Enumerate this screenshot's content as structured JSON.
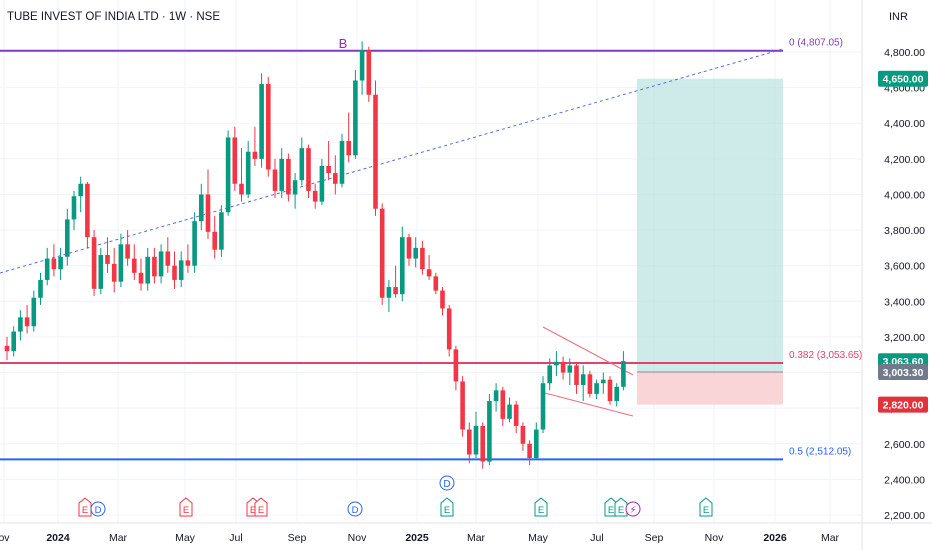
{
  "header": {
    "title": "TUBE INVEST OF INDIA LTD · 1W · NSE",
    "currency": "INR"
  },
  "chart_data": {
    "type": "candlestick",
    "y_ticks": [
      "2,200.00",
      "2,400.00",
      "2,600.00",
      "2,800.00",
      "3,000.00",
      "3,200.00",
      "3,400.00",
      "3,600.00",
      "3,800.00",
      "4,000.00",
      "4,200.00",
      "4,400.00",
      "4,600.00",
      "4,800.00"
    ],
    "x_ticks": [
      "ov",
      "2024",
      "Mar",
      "May",
      "Jul",
      "Sep",
      "Nov",
      "2025",
      "Mar",
      "May",
      "Jul",
      "Sep",
      "Nov",
      "2026",
      "Mar"
    ],
    "ylim": [
      2170,
      5050
    ],
    "candles": [
      [
        3150,
        3200,
        3070,
        3120
      ],
      [
        3120,
        3260,
        3090,
        3230
      ],
      [
        3230,
        3350,
        3180,
        3310
      ],
      [
        3310,
        3380,
        3220,
        3260
      ],
      [
        3260,
        3460,
        3230,
        3420
      ],
      [
        3420,
        3560,
        3380,
        3520
      ],
      [
        3520,
        3700,
        3490,
        3640
      ],
      [
        3640,
        3720,
        3540,
        3580
      ],
      [
        3580,
        3700,
        3520,
        3650
      ],
      [
        3650,
        3920,
        3600,
        3860
      ],
      [
        3860,
        4020,
        3800,
        3990
      ],
      [
        3990,
        4100,
        3900,
        4060
      ],
      [
        4060,
        4070,
        3700,
        3760
      ],
      [
        3760,
        3800,
        3430,
        3470
      ],
      [
        3470,
        3700,
        3440,
        3660
      ],
      [
        3660,
        3760,
        3560,
        3610
      ],
      [
        3610,
        3700,
        3450,
        3510
      ],
      [
        3510,
        3780,
        3480,
        3720
      ],
      [
        3720,
        3800,
        3600,
        3640
      ],
      [
        3640,
        3720,
        3520,
        3560
      ],
      [
        3560,
        3640,
        3460,
        3500
      ],
      [
        3500,
        3700,
        3460,
        3650
      ],
      [
        3650,
        3700,
        3500,
        3540
      ],
      [
        3540,
        3720,
        3500,
        3680
      ],
      [
        3680,
        3760,
        3560,
        3600
      ],
      [
        3600,
        3680,
        3470,
        3520
      ],
      [
        3520,
        3680,
        3480,
        3630
      ],
      [
        3630,
        3720,
        3560,
        3600
      ],
      [
        3600,
        3900,
        3560,
        3850
      ],
      [
        3850,
        4060,
        3800,
        4000
      ],
      [
        4000,
        4140,
        3750,
        3790
      ],
      [
        3790,
        3880,
        3640,
        3690
      ],
      [
        3690,
        3940,
        3650,
        3900
      ],
      [
        3900,
        4360,
        3880,
        4320
      ],
      [
        4320,
        4380,
        4020,
        4060
      ],
      [
        4060,
        4260,
        3960,
        4000
      ],
      [
        4000,
        4300,
        3980,
        4240
      ],
      [
        4240,
        4380,
        4160,
        4200
      ],
      [
        4200,
        4680,
        4150,
        4620
      ],
      [
        4620,
        4660,
        4100,
        4140
      ],
      [
        4140,
        4200,
        3980,
        4020
      ],
      [
        4020,
        4260,
        3980,
        4200
      ],
      [
        4200,
        4230,
        3960,
        4000
      ],
      [
        4000,
        4120,
        3920,
        4080
      ],
      [
        4080,
        4320,
        4050,
        4260
      ],
      [
        4260,
        4280,
        3980,
        4020
      ],
      [
        4020,
        4060,
        3920,
        3960
      ],
      [
        3960,
        4200,
        3940,
        4160
      ],
      [
        4160,
        4300,
        4080,
        4120
      ],
      [
        4120,
        4220,
        4000,
        4060
      ],
      [
        4060,
        4340,
        4040,
        4300
      ],
      [
        4300,
        4460,
        4180,
        4220
      ],
      [
        4220,
        4700,
        4200,
        4640
      ],
      [
        4640,
        4860,
        4560,
        4810
      ],
      [
        4810,
        4830,
        4520,
        4560
      ],
      [
        4560,
        4640,
        3880,
        3920
      ],
      [
        3920,
        3950,
        3380,
        3420
      ],
      [
        3420,
        3520,
        3340,
        3480
      ],
      [
        3480,
        3600,
        3420,
        3440
      ],
      [
        3440,
        3820,
        3400,
        3760
      ],
      [
        3760,
        3780,
        3600,
        3640
      ],
      [
        3640,
        3760,
        3590,
        3700
      ],
      [
        3700,
        3740,
        3550,
        3580
      ],
      [
        3580,
        3660,
        3520,
        3540
      ],
      [
        3540,
        3560,
        3440,
        3460
      ],
      [
        3460,
        3480,
        3320,
        3360
      ],
      [
        3360,
        3380,
        3090,
        3130
      ],
      [
        3130,
        3150,
        2900,
        2950
      ],
      [
        2950,
        2980,
        2640,
        2680
      ],
      [
        2680,
        2720,
        2490,
        2540
      ],
      [
        2540,
        2780,
        2520,
        2700
      ],
      [
        2700,
        2720,
        2460,
        2500
      ],
      [
        2500,
        2880,
        2480,
        2840
      ],
      [
        2840,
        2940,
        2780,
        2900
      ],
      [
        2900,
        2920,
        2700,
        2740
      ],
      [
        2740,
        2860,
        2720,
        2820
      ],
      [
        2820,
        2840,
        2660,
        2700
      ],
      [
        2700,
        2720,
        2560,
        2600
      ],
      [
        2600,
        2620,
        2480,
        2520
      ],
      [
        2520,
        2720,
        2510,
        2680
      ],
      [
        2680,
        2980,
        2660,
        2940
      ],
      [
        2940,
        3080,
        2900,
        3040
      ],
      [
        3040,
        3120,
        2980,
        3060
      ],
      [
        3060,
        3090,
        2960,
        3000
      ],
      [
        3000,
        3080,
        2930,
        3040
      ],
      [
        3040,
        3060,
        2880,
        2930
      ],
      [
        2930,
        3040,
        2840,
        2990
      ],
      [
        2990,
        3010,
        2860,
        2880
      ],
      [
        2880,
        2960,
        2850,
        2940
      ],
      [
        2940,
        3000,
        2880,
        2960
      ],
      [
        2960,
        2980,
        2820,
        2840
      ],
      [
        2840,
        2940,
        2810,
        2920
      ],
      [
        2920,
        3120,
        2900,
        3064
      ]
    ],
    "candle_x_start": 7,
    "candle_x_step": 6.7,
    "fib_levels": [
      {
        "label": "0 (4,807.05)",
        "price": 4807.05,
        "color": "#7e3fbf"
      },
      {
        "label": "0.382 (3,053.65)",
        "price": 3053.65,
        "color": "#e0446a"
      },
      {
        "label": "0.5 (2,512.05)",
        "price": 2512.05,
        "color": "#2962ff"
      }
    ],
    "price_badges": [
      {
        "label": "4,650.00",
        "price": 4650,
        "color": "#089981"
      },
      {
        "label": "3,063.60",
        "price": 3063.6,
        "color": "#089981"
      },
      {
        "label": "3,003.30",
        "price": 3003.3,
        "color": "#707a8a"
      },
      {
        "label": "2,820.00",
        "price": 2820,
        "color": "#e0333b"
      }
    ],
    "position": {
      "target": 4650,
      "entry": 3003.3,
      "stop": 2820
    },
    "markers": {
      "B": "B",
      "D": "D"
    },
    "events": [
      "E",
      "D",
      "E",
      "E",
      "E",
      "D",
      "E",
      "E",
      "E",
      "E",
      "⚡",
      "E"
    ],
    "colors": {
      "up": "#089981",
      "down": "#f23645",
      "grid": "#f0f3fa",
      "axis": "#e0e3eb",
      "text": "#131722"
    }
  }
}
